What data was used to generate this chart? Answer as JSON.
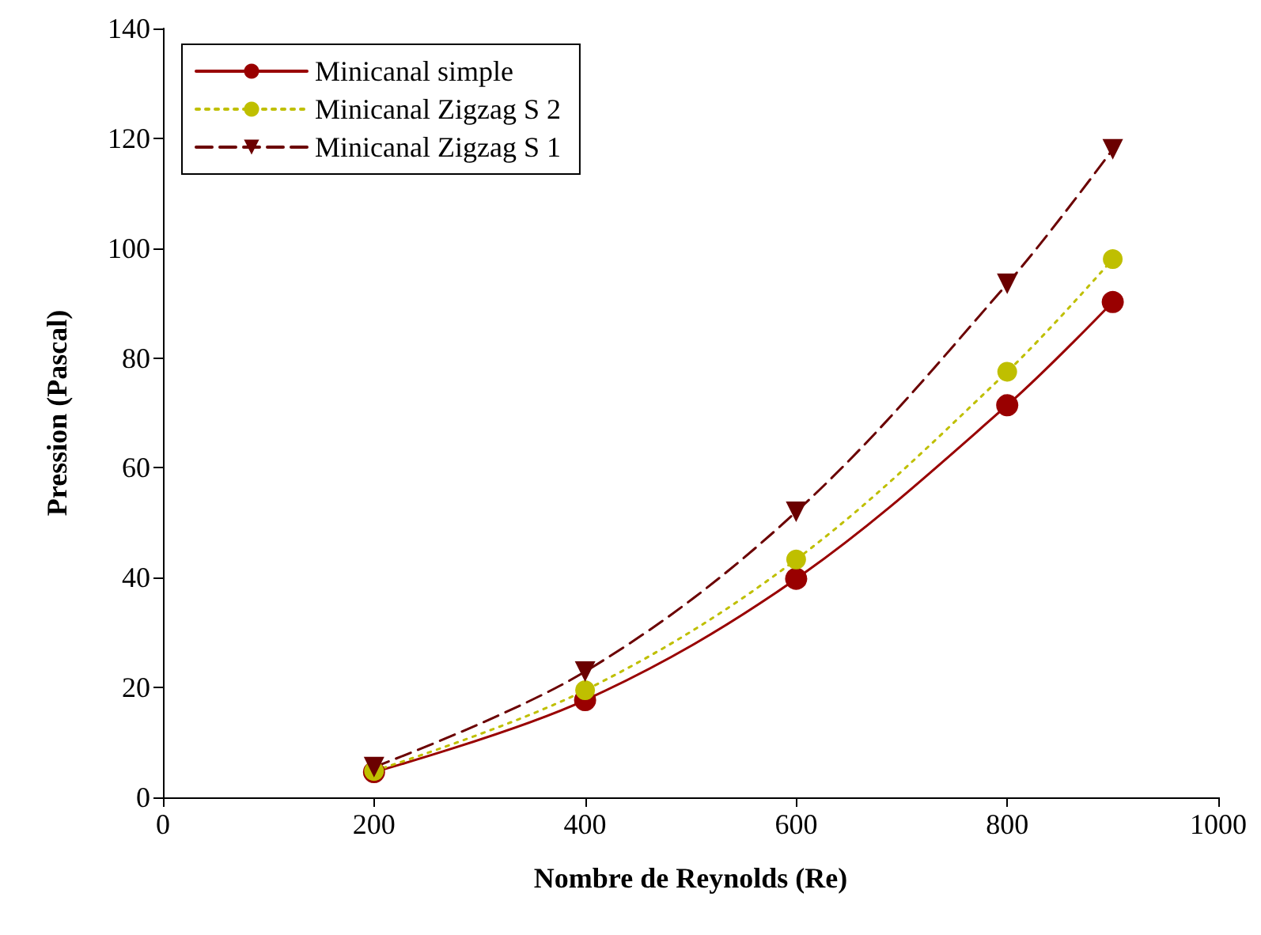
{
  "chart_data": {
    "type": "line",
    "xlabel": "Nombre de Reynolds (Re)",
    "ylabel": "Pression (Pascal)",
    "x": [
      200,
      400,
      600,
      800,
      900
    ],
    "series": [
      {
        "name": "Minicanal simple",
        "color": "#990000",
        "marker": "circle",
        "line_style": "solid",
        "values": [
          4.6,
          17.7,
          39.8,
          71.4,
          90.2
        ]
      },
      {
        "name": "Minicanal Zigzag S 2",
        "color": "#bfbf00",
        "marker": "circle",
        "line_style": "dotted",
        "values": [
          4.8,
          19.5,
          43.3,
          77.5,
          98
        ]
      },
      {
        "name": "Minicanal Zigzag S 1",
        "color": "#6b0000",
        "marker": "triangle",
        "line_style": "dashed",
        "values": [
          5.5,
          22.9,
          52,
          93.5,
          118
        ]
      }
    ],
    "xlim": [
      0,
      1000
    ],
    "xticks": [
      0,
      200,
      400,
      600,
      800,
      1000
    ],
    "ylim": [
      0,
      140
    ],
    "yticks": [
      0,
      20,
      40,
      60,
      80,
      100,
      120,
      140
    ],
    "grid": false,
    "legend": "top left"
  }
}
